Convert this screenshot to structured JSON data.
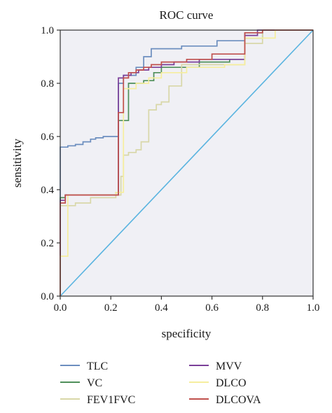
{
  "chart_data": {
    "type": "line",
    "title": "ROC curve",
    "xlabel": "specificity",
    "ylabel": "sensitivity",
    "xlim": [
      0,
      1
    ],
    "ylim": [
      0,
      1
    ],
    "xticks": [
      "0.0",
      "0.2",
      "0.4",
      "0.6",
      "0.8",
      "1.0"
    ],
    "yticks": [
      "0.0",
      "0.2",
      "0.4",
      "0.6",
      "0.8",
      "1.0"
    ],
    "grid": false,
    "plot_background": "#f0f0f5",
    "legend_position": "bottom",
    "reference_line": {
      "x": [
        0,
        1
      ],
      "y": [
        0,
        1
      ],
      "color": "#5ab4e0"
    },
    "series": [
      {
        "name": "TLC",
        "color": "#6c8ebf",
        "x": [
          0,
          0,
          0.03,
          0.03,
          0.06,
          0.06,
          0.09,
          0.09,
          0.12,
          0.12,
          0.14,
          0.14,
          0.17,
          0.17,
          0.23,
          0.23,
          0.25,
          0.25,
          0.3,
          0.3,
          0.33,
          0.33,
          0.36,
          0.36,
          0.48,
          0.48,
          0.62,
          0.62,
          0.73,
          0.73,
          0.8,
          0.8,
          1.0
        ],
        "y": [
          0,
          0.56,
          0.56,
          0.565,
          0.565,
          0.57,
          0.57,
          0.58,
          0.58,
          0.59,
          0.59,
          0.595,
          0.595,
          0.6,
          0.6,
          0.8,
          0.8,
          0.83,
          0.83,
          0.86,
          0.86,
          0.9,
          0.9,
          0.93,
          0.93,
          0.94,
          0.94,
          0.96,
          0.96,
          0.99,
          0.99,
          1.0,
          1.0
        ]
      },
      {
        "name": "VC",
        "color": "#4f8f5a",
        "x": [
          0,
          0,
          0.02,
          0.02,
          0.22,
          0.22,
          0.23,
          0.23,
          0.27,
          0.27,
          0.33,
          0.33,
          0.37,
          0.37,
          0.4,
          0.4,
          0.55,
          0.55,
          0.67,
          0.67,
          0.73,
          0.73,
          0.8,
          0.8,
          1.0
        ],
        "y": [
          0,
          0.37,
          0.37,
          0.38,
          0.38,
          0.39,
          0.39,
          0.66,
          0.66,
          0.8,
          0.8,
          0.81,
          0.81,
          0.84,
          0.84,
          0.86,
          0.86,
          0.88,
          0.88,
          0.89,
          0.89,
          0.97,
          0.97,
          1.0,
          1.0
        ]
      },
      {
        "name": "FEV1FVC",
        "color": "#d8d7a8",
        "x": [
          0,
          0,
          0.06,
          0.06,
          0.12,
          0.12,
          0.22,
          0.22,
          0.24,
          0.24,
          0.25,
          0.25,
          0.27,
          0.27,
          0.3,
          0.3,
          0.32,
          0.32,
          0.35,
          0.35,
          0.38,
          0.38,
          0.4,
          0.4,
          0.43,
          0.43,
          0.48,
          0.48,
          0.73,
          0.73,
          0.8,
          0.8,
          1.0
        ],
        "y": [
          0,
          0.34,
          0.34,
          0.35,
          0.35,
          0.37,
          0.37,
          0.38,
          0.38,
          0.45,
          0.45,
          0.53,
          0.53,
          0.54,
          0.54,
          0.55,
          0.55,
          0.58,
          0.58,
          0.7,
          0.7,
          0.72,
          0.72,
          0.73,
          0.73,
          0.79,
          0.79,
          0.87,
          0.87,
          0.95,
          0.95,
          1.0,
          1.0
        ]
      },
      {
        "name": "MVV",
        "color": "#7b3f99",
        "x": [
          0,
          0,
          0.02,
          0.02,
          0.23,
          0.23,
          0.25,
          0.25,
          0.28,
          0.28,
          0.31,
          0.31,
          0.35,
          0.35,
          0.4,
          0.4,
          0.45,
          0.45,
          0.55,
          0.55,
          0.73,
          0.73,
          0.78,
          0.78,
          1.0
        ],
        "y": [
          0,
          0.36,
          0.36,
          0.38,
          0.38,
          0.82,
          0.82,
          0.83,
          0.83,
          0.84,
          0.84,
          0.85,
          0.85,
          0.86,
          0.86,
          0.87,
          0.87,
          0.88,
          0.88,
          0.89,
          0.89,
          0.98,
          0.98,
          1.0,
          1.0
        ]
      },
      {
        "name": "DLCO",
        "color": "#f6ee9e",
        "x": [
          0,
          0,
          0.01,
          0.01,
          0.03,
          0.03,
          0.22,
          0.22,
          0.25,
          0.25,
          0.3,
          0.3,
          0.35,
          0.35,
          0.4,
          0.4,
          0.5,
          0.5,
          0.65,
          0.65,
          0.73,
          0.73,
          0.85,
          0.85,
          1.0
        ],
        "y": [
          0,
          0.15,
          0.15,
          0.15,
          0.15,
          0.38,
          0.38,
          0.39,
          0.39,
          0.78,
          0.78,
          0.8,
          0.8,
          0.82,
          0.82,
          0.84,
          0.84,
          0.86,
          0.86,
          0.87,
          0.87,
          0.97,
          0.97,
          1.0,
          1.0
        ]
      },
      {
        "name": "DLCOVA",
        "color": "#c0504d",
        "x": [
          0,
          0,
          0.02,
          0.02,
          0.23,
          0.23,
          0.25,
          0.25,
          0.27,
          0.27,
          0.3,
          0.3,
          0.33,
          0.33,
          0.36,
          0.36,
          0.4,
          0.4,
          0.5,
          0.5,
          0.6,
          0.6,
          0.73,
          0.73,
          0.8,
          0.8,
          1.0
        ],
        "y": [
          0,
          0.35,
          0.35,
          0.38,
          0.38,
          0.69,
          0.69,
          0.82,
          0.82,
          0.84,
          0.84,
          0.85,
          0.85,
          0.86,
          0.86,
          0.87,
          0.87,
          0.88,
          0.88,
          0.89,
          0.89,
          0.91,
          0.91,
          0.99,
          0.99,
          1.0,
          1.0
        ]
      }
    ]
  }
}
